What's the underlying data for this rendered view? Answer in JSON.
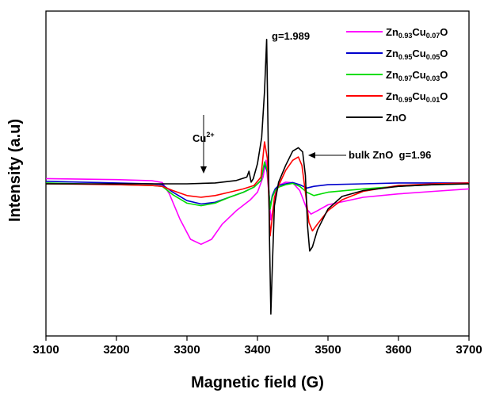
{
  "chart_data": {
    "type": "line",
    "xlabel": "Magnetic field (G)",
    "ylabel": "Intensity (a.u)",
    "xlim": [
      3100,
      3700
    ],
    "xticks": [
      "3100",
      "3200",
      "3300",
      "3400",
      "3500",
      "3600",
      "3700"
    ],
    "grid": false,
    "legend_position": "top-right",
    "annotations": {
      "g1": "g=1.989",
      "g2": "bulk ZnO  g=1.96",
      "cu_base": "Cu",
      "cu_sup": "2+"
    },
    "series": [
      {
        "name": "Zn0.93Cu0.07O",
        "legend": {
          "a": "Zn",
          "b": "0.93",
          "c": "Cu",
          "d": "0.07",
          "e": "O"
        },
        "color": "#ff00ff",
        "x": [
          3100,
          3150,
          3200,
          3250,
          3265,
          3275,
          3290,
          3305,
          3320,
          3335,
          3350,
          3370,
          3390,
          3400,
          3408,
          3412,
          3416,
          3419,
          3422,
          3426,
          3430,
          3440,
          3450,
          3460,
          3470,
          3476,
          3485,
          3500,
          3550,
          3600,
          3650,
          3700
        ],
        "y": [
          0.62,
          0.56,
          0.5,
          0.38,
          0.15,
          -1.2,
          -4.2,
          -6.6,
          -7.2,
          -6.6,
          -4.8,
          -3.2,
          -1.9,
          -1.0,
          0.8,
          2.8,
          -1.0,
          -4.3,
          -3.0,
          -0.8,
          -0.2,
          0.2,
          0.12,
          -0.8,
          -3.0,
          -3.6,
          -3.2,
          -2.5,
          -1.6,
          -1.2,
          -0.9,
          -0.6
        ]
      },
      {
        "name": "Zn0.95Cu0.05O",
        "legend": {
          "a": "Zn",
          "b": "0.95",
          "c": "Cu",
          "d": "0.05",
          "e": "O"
        },
        "color": "#0000cc",
        "x": [
          3100,
          3150,
          3200,
          3250,
          3265,
          3280,
          3300,
          3320,
          3340,
          3360,
          3380,
          3395,
          3405,
          3410,
          3414,
          3418,
          3421,
          3425,
          3430,
          3440,
          3450,
          3460,
          3470,
          3480,
          3500,
          3550,
          3600,
          3650,
          3700
        ],
        "y": [
          0.3,
          0.2,
          0.1,
          0.0,
          -0.1,
          -1.0,
          -2.0,
          -2.4,
          -2.2,
          -1.6,
          -1.0,
          -0.4,
          0.4,
          2.4,
          1.4,
          -2.8,
          -1.4,
          -0.6,
          -0.2,
          0.0,
          0.15,
          -0.1,
          -0.5,
          -0.3,
          -0.1,
          0.0,
          0.1,
          0.1,
          0.1
        ]
      },
      {
        "name": "Zn0.97Cu0.03O",
        "legend": {
          "a": "Zn",
          "b": "0.97",
          "c": "Cu",
          "d": "0.03",
          "e": "O"
        },
        "color": "#00dd00",
        "x": [
          3100,
          3150,
          3200,
          3250,
          3265,
          3280,
          3300,
          3320,
          3340,
          3360,
          3380,
          3395,
          3405,
          3410,
          3414,
          3418,
          3421,
          3425,
          3430,
          3440,
          3450,
          3460,
          3470,
          3480,
          3500,
          3550,
          3600,
          3650,
          3700
        ],
        "y": [
          0.1,
          0.0,
          -0.1,
          -0.2,
          -0.3,
          -1.3,
          -2.3,
          -2.6,
          -2.3,
          -1.6,
          -1.0,
          -0.4,
          0.4,
          2.6,
          1.6,
          -3.0,
          -1.6,
          -0.8,
          -0.4,
          -0.1,
          0.05,
          -0.3,
          -1.0,
          -1.4,
          -1.0,
          -0.6,
          -0.3,
          -0.1,
          0.0
        ]
      },
      {
        "name": "Zn0.99Cu0.01O",
        "legend": {
          "a": "Zn",
          "b": "0.99",
          "c": "Cu",
          "d": "0.01",
          "e": "O"
        },
        "color": "#ff0000",
        "x": [
          3100,
          3150,
          3200,
          3250,
          3265,
          3280,
          3300,
          3320,
          3340,
          3360,
          3380,
          3395,
          3405,
          3410,
          3414,
          3418,
          3421,
          3424,
          3430,
          3440,
          3450,
          3458,
          3463,
          3468,
          3473,
          3478,
          3485,
          3500,
          3520,
          3550,
          3600,
          3650,
          3700
        ],
        "y": [
          0.0,
          -0.05,
          -0.1,
          -0.2,
          -0.3,
          -0.8,
          -1.4,
          -1.6,
          -1.4,
          -1.0,
          -0.6,
          -0.2,
          0.8,
          5.0,
          3.0,
          -6.2,
          -4.0,
          -1.6,
          -0.2,
          1.6,
          2.8,
          3.2,
          2.2,
          -1.0,
          -4.6,
          -5.6,
          -4.8,
          -3.2,
          -1.9,
          -0.9,
          -0.2,
          0.0,
          0.1
        ]
      },
      {
        "name": "ZnO",
        "legend": {
          "a": "ZnO",
          "b": "",
          "c": "",
          "d": "",
          "e": ""
        },
        "color": "#000000",
        "x": [
          3100,
          3150,
          3200,
          3250,
          3300,
          3340,
          3370,
          3385,
          3388,
          3391,
          3394,
          3400,
          3406,
          3410,
          3413,
          3415,
          3417,
          3419,
          3421,
          3424,
          3430,
          3440,
          3450,
          3458,
          3464,
          3468,
          3471,
          3474,
          3478,
          3485,
          3500,
          3520,
          3550,
          3600,
          3650,
          3700
        ],
        "y": [
          0.0,
          0.0,
          0.0,
          0.0,
          0.0,
          0.1,
          0.4,
          0.8,
          1.5,
          0.2,
          0.6,
          2.4,
          5.5,
          11.0,
          17.2,
          6.0,
          -6.0,
          -15.5,
          -10.0,
          -2.6,
          0.2,
          2.2,
          3.9,
          4.3,
          3.8,
          1.0,
          -5.0,
          -8.0,
          -7.5,
          -5.5,
          -3.0,
          -1.5,
          -0.8,
          -0.3,
          -0.1,
          0.0
        ]
      }
    ]
  }
}
